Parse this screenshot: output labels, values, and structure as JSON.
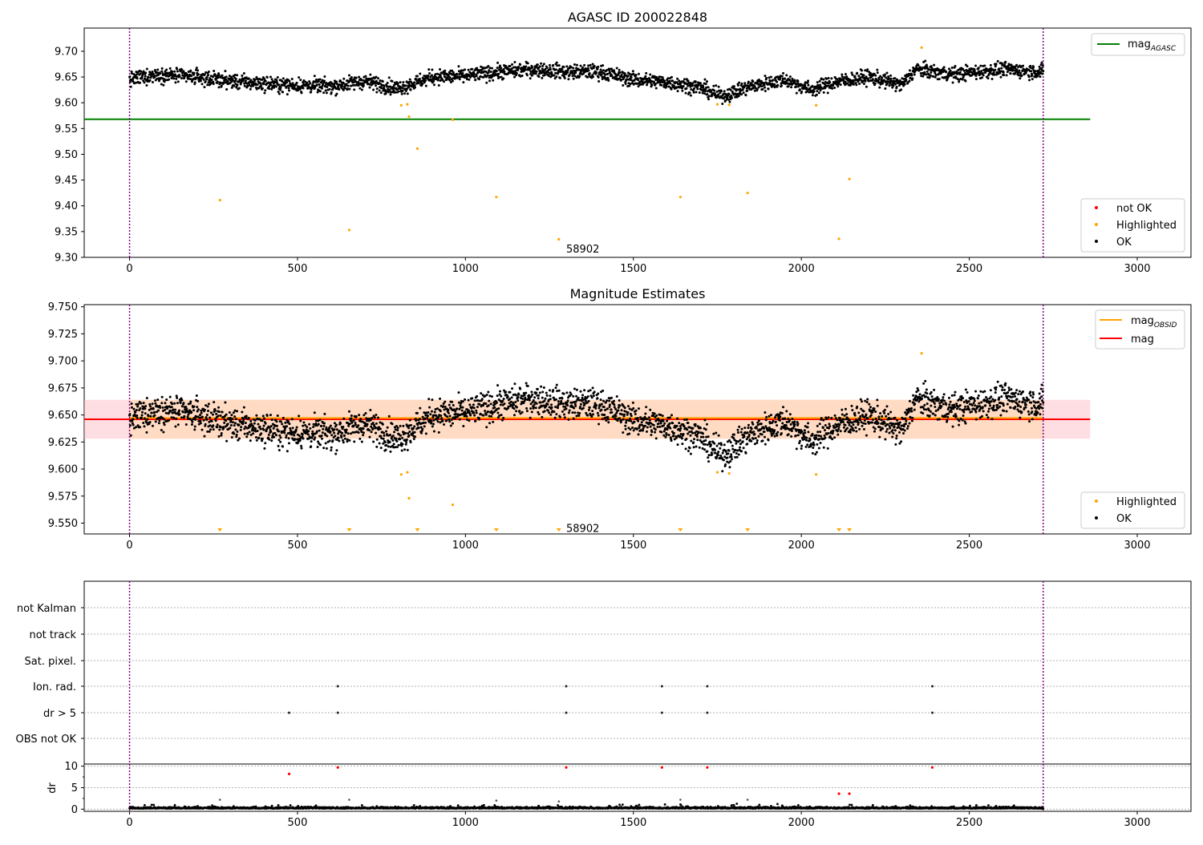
{
  "chart_data": [
    {
      "id": "top",
      "type": "scatter",
      "title": "AGASC ID 200022848",
      "xlim": [
        -135,
        3160
      ],
      "ylim": [
        9.3,
        9.745
      ],
      "xticks": [
        0,
        500,
        1000,
        1500,
        2000,
        2500,
        3000
      ],
      "yticks": [
        9.3,
        9.35,
        9.4,
        9.45,
        9.5,
        9.55,
        9.6,
        9.65,
        9.7
      ],
      "ytick_labels": [
        "9.30",
        "9.35",
        "9.40",
        "9.45",
        "9.50",
        "9.55",
        "9.60",
        "9.65",
        "9.70"
      ],
      "vlines": [
        0,
        2720
      ],
      "hlines": [
        {
          "name": "mag_AGASC",
          "y": 9.568,
          "x": [
            -135,
            2860
          ],
          "color": "#008000"
        }
      ],
      "annotation": {
        "text": "58902",
        "x": 1300,
        "y": 9.317
      },
      "series": [
        {
          "name": "not OK",
          "color": "#ff0000",
          "points": []
        },
        {
          "name": "Highlighted",
          "color": "#ffa500",
          "points": [
            [
              269,
              9.411
            ],
            [
              654,
              9.353
            ],
            [
              809,
              9.595
            ],
            [
              827,
              9.597
            ],
            [
              832,
              9.573
            ],
            [
              857,
              9.511
            ],
            [
              962,
              9.567
            ],
            [
              1092,
              9.417
            ],
            [
              1278,
              9.335
            ],
            [
              1640,
              9.417
            ],
            [
              1750,
              9.597
            ],
            [
              1785,
              9.596
            ],
            [
              1840,
              9.425
            ],
            [
              2044,
              9.595
            ],
            [
              2112,
              9.336
            ],
            [
              2143,
              9.452
            ],
            [
              2358,
              9.707
            ]
          ]
        },
        {
          "name": "OK",
          "color": "#000000",
          "summary": "about 2700 points between 9.60 and 9.70 over x = 0 to 2720",
          "baseline": [
            [
              0,
              9.645
            ],
            [
              80,
              9.655
            ],
            [
              200,
              9.65
            ],
            [
              300,
              9.642
            ],
            [
              450,
              9.635
            ],
            [
              600,
              9.632
            ],
            [
              700,
              9.642
            ],
            [
              800,
              9.628
            ],
            [
              900,
              9.65
            ],
            [
              1000,
              9.652
            ],
            [
              1100,
              9.66
            ],
            [
              1200,
              9.665
            ],
            [
              1300,
              9.66
            ],
            [
              1400,
              9.66
            ],
            [
              1500,
              9.645
            ],
            [
              1600,
              9.64
            ],
            [
              1700,
              9.63
            ],
            [
              1760,
              9.612
            ],
            [
              1850,
              9.632
            ],
            [
              1950,
              9.645
            ],
            [
              2030,
              9.625
            ],
            [
              2100,
              9.64
            ],
            [
              2200,
              9.65
            ],
            [
              2300,
              9.635
            ],
            [
              2340,
              9.665
            ],
            [
              2450,
              9.655
            ],
            [
              2600,
              9.665
            ],
            [
              2720,
              9.66
            ]
          ]
        }
      ],
      "legend_upper": {
        "placement": "top-right",
        "entries": [
          {
            "label": "mag",
            "sub": "AGASC",
            "color": "#008000"
          }
        ]
      },
      "legend_lower": {
        "placement": "bottom-right",
        "entries": [
          {
            "label": "not OK",
            "color": "#ff0000"
          },
          {
            "label": "Highlighted",
            "color": "#ffa500"
          },
          {
            "label": "OK",
            "color": "#000000"
          }
        ]
      }
    },
    {
      "id": "mid",
      "type": "scatter",
      "title": "Magnitude Estimates",
      "xlim": [
        -135,
        3160
      ],
      "ylim": [
        9.54,
        9.752
      ],
      "xticks": [
        0,
        500,
        1000,
        1500,
        2000,
        2500,
        3000
      ],
      "yticks": [
        9.55,
        9.575,
        9.6,
        9.625,
        9.65,
        9.675,
        9.7,
        9.725,
        9.75
      ],
      "ytick_labels": [
        "9.550",
        "9.575",
        "9.600",
        "9.625",
        "9.650",
        "9.675",
        "9.700",
        "9.725",
        "9.750"
      ],
      "vlines": [
        0,
        2720
      ],
      "bands": [
        {
          "y": [
            9.628,
            9.664
          ],
          "x": [
            -135,
            2860
          ],
          "color": "#ffb6c1"
        },
        {
          "y": [
            9.628,
            9.664
          ],
          "x": [
            0,
            2720
          ],
          "color": "#ffdab9"
        }
      ],
      "hlines": [
        {
          "name": "mag",
          "y": 9.646,
          "x": [
            -135,
            2860
          ],
          "color": "#ff0000"
        },
        {
          "name": "mag_OBSID",
          "y": 9.6465,
          "x": [
            0,
            2720
          ],
          "color": "#ffa500"
        }
      ],
      "annotation": {
        "text": "58902",
        "x": 1300,
        "y": 9.5455
      },
      "below_range_markers": [
        269,
        654,
        857,
        1092,
        1278,
        1640,
        1840,
        2112,
        2143
      ],
      "series": [
        {
          "name": "Highlighted",
          "color": "#ffa500",
          "points": [
            [
              809,
              9.595
            ],
            [
              827,
              9.597
            ],
            [
              832,
              9.573
            ],
            [
              962,
              9.567
            ],
            [
              1750,
              9.597
            ],
            [
              1785,
              9.596
            ],
            [
              2044,
              9.595
            ],
            [
              2358,
              9.707
            ]
          ]
        },
        {
          "name": "OK",
          "color": "#000000",
          "summary": "same OK points as the upper panel, ylim 9.540 to 9.752"
        }
      ],
      "legend_upper": {
        "placement": "top-right",
        "entries": [
          {
            "label": "mag",
            "sub": "OBSID",
            "color": "#ffa500"
          },
          {
            "label": "mag",
            "sub": "",
            "color": "#ff0000"
          }
        ]
      },
      "legend_lower": {
        "placement": "bottom-right",
        "entries": [
          {
            "label": "Highlighted",
            "color": "#ffa500"
          },
          {
            "label": "OK",
            "color": "#000000"
          }
        ]
      }
    },
    {
      "id": "flags",
      "type": "scatter",
      "title": "",
      "xlim": [
        -135,
        3160
      ],
      "vlines": [
        0,
        2720
      ],
      "categories": [
        "not Kalman",
        "not track",
        "Sat. pixel.",
        "Ion. rad.",
        "dr > 5",
        "OBS not OK"
      ],
      "series": [
        {
          "name": "Ion. rad.",
          "points": [
            620,
            1300,
            1585,
            1720,
            2390
          ]
        },
        {
          "name": "dr > 5",
          "points": [
            475,
            620,
            1300,
            1585,
            1720,
            2390
          ]
        }
      ]
    },
    {
      "id": "dr",
      "type": "scatter",
      "title": "",
      "ylabel": "dr",
      "xlim": [
        -135,
        3160
      ],
      "ylim": [
        -0.5,
        10.5
      ],
      "xticks": [
        0,
        500,
        1000,
        1500,
        2000,
        2500,
        3000
      ],
      "xtick_labels": [
        "0",
        "500",
        "1000",
        "1500",
        "2000",
        "2500",
        "3000"
      ],
      "yticks": [
        0,
        5,
        10
      ],
      "vlines": [
        0,
        2720
      ],
      "series": [
        {
          "name": "red",
          "color": "#ff0000",
          "points": [
            [
              475,
              8.2
            ],
            [
              620,
              9.7
            ],
            [
              1300,
              9.7
            ],
            [
              1585,
              9.7
            ],
            [
              1720,
              9.7
            ],
            [
              2112,
              3.6
            ],
            [
              2143,
              3.6
            ],
            [
              2390,
              9.7
            ]
          ]
        },
        {
          "name": "gray",
          "color": "#555555",
          "points": [
            [
              269,
              2.2
            ],
            [
              654,
              2.2
            ],
            [
              1092,
              2.0
            ],
            [
              1278,
              1.8
            ],
            [
              1640,
              2.2
            ],
            [
              1840,
              2.2
            ]
          ]
        },
        {
          "name": "OK",
          "color": "#000000",
          "summary": "dense points between 0 and 1.2 over x = 0 to 2720"
        }
      ]
    }
  ]
}
